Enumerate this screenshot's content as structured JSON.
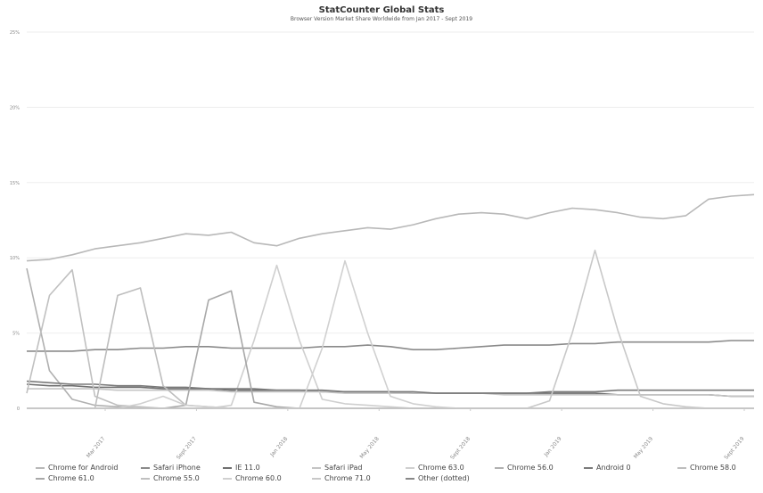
{
  "chart_data": {
    "type": "line",
    "title": "StatCounter Global Stats",
    "subtitle": "Browser Version Market Share Worldwide from Jan 2017 - Sept 2019",
    "x_tick_labels": [
      "Mar 2017",
      "Sept 2017",
      "Jan 2018",
      "May 2018",
      "Sept 2018",
      "Jan 2019",
      "May 2019",
      "Sept 2019"
    ],
    "y_tick_labels": [
      "0",
      "5%",
      "10%",
      "15%",
      "20%",
      "25%"
    ],
    "ylim": [
      0,
      25
    ],
    "grid": true,
    "legend_position": "bottom",
    "x_count": 33,
    "series": [
      {
        "name": "Chrome for Android",
        "color": "#b8b8b8",
        "values": [
          9.8,
          9.9,
          10.2,
          10.6,
          10.8,
          11.0,
          11.3,
          11.6,
          11.5,
          11.7,
          11.0,
          10.8,
          11.3,
          11.6,
          11.8,
          12.0,
          11.9,
          12.2,
          12.6,
          12.9,
          13.0,
          12.9,
          12.6,
          13.0,
          13.3,
          13.2,
          13.0,
          12.7,
          12.6,
          12.8,
          13.9,
          14.1,
          14.2
        ]
      },
      {
        "name": "Safari iPhone",
        "color": "#8a8a8a",
        "values": [
          3.8,
          3.8,
          3.8,
          3.9,
          3.9,
          4.0,
          4.0,
          4.1,
          4.1,
          4.0,
          4.0,
          4.0,
          4.0,
          4.1,
          4.1,
          4.2,
          4.1,
          3.9,
          3.9,
          4.0,
          4.1,
          4.2,
          4.2,
          4.2,
          4.3,
          4.3,
          4.4,
          4.4,
          4.4,
          4.4,
          4.4,
          4.5,
          4.5
        ]
      },
      {
        "name": "IE 11.0",
        "color": "#6f6f6f",
        "values": [
          1.6,
          1.5,
          1.5,
          1.4,
          1.4,
          1.4,
          1.3,
          1.3,
          1.3,
          1.2,
          1.2,
          1.2,
          1.2,
          1.1,
          1.1,
          1.1,
          1.1,
          1.0,
          1.0,
          1.0,
          1.0,
          1.0,
          1.0,
          1.0,
          1.0,
          1.0,
          0.9,
          0.9,
          0.9,
          0.9,
          0.9,
          0.8,
          0.8
        ]
      },
      {
        "name": "Safari iPad",
        "color": "#c4c4c4",
        "values": [
          1.3,
          1.3,
          1.3,
          1.3,
          1.2,
          1.2,
          1.2,
          1.2,
          1.2,
          1.1,
          1.1,
          1.1,
          1.1,
          1.1,
          1.0,
          1.0,
          1.0,
          1.0,
          1.0,
          1.0,
          1.0,
          0.9,
          0.9,
          0.9,
          0.9,
          0.9,
          0.9,
          0.9,
          0.9,
          0.9,
          0.9,
          0.8,
          0.8
        ]
      },
      {
        "name": "Chrome 63.0",
        "color": "#cfcfcf",
        "values": [
          0,
          0,
          0,
          0,
          0,
          0,
          0,
          0,
          0,
          0.2,
          4.5,
          9.5,
          4.5,
          0.6,
          0.3,
          0.2,
          0.1,
          0,
          0,
          0,
          0,
          0,
          0,
          0,
          0,
          0,
          0,
          0,
          0,
          0,
          0,
          0,
          0
        ]
      },
      {
        "name": "Chrome 56.0",
        "color": "#b0b0b0",
        "values": [
          9.3,
          2.5,
          0.6,
          0.2,
          0.1,
          0,
          0,
          0,
          0,
          0,
          0,
          0,
          0,
          0,
          0,
          0,
          0,
          0,
          0,
          0,
          0,
          0,
          0,
          0,
          0,
          0,
          0,
          0,
          0,
          0,
          0,
          0,
          0
        ]
      },
      {
        "name": "Android 0",
        "color": "#7a7a7a",
        "values": [
          1.8,
          1.7,
          1.6,
          1.6,
          1.5,
          1.5,
          1.4,
          1.4,
          1.3,
          1.3,
          1.3,
          1.2,
          1.2,
          1.2,
          1.1,
          1.1,
          1.1,
          1.1,
          1.0,
          1.0,
          1.0,
          1.0,
          1.0,
          1.1,
          1.1,
          1.1,
          1.2,
          1.2,
          1.2,
          1.2,
          1.2,
          1.2,
          1.2
        ]
      },
      {
        "name": "Chrome 58.0",
        "color": "#bdbdbd",
        "values": [
          0,
          0,
          0,
          0,
          7.5,
          8.0,
          1.5,
          0.2,
          0.1,
          0,
          0,
          0,
          0,
          0,
          0,
          0,
          0,
          0,
          0,
          0,
          0,
          0,
          0,
          0,
          0,
          0,
          0,
          0,
          0,
          0,
          0,
          0,
          0
        ]
      },
      {
        "name": "Chrome 61.0",
        "color": "#a8a8a8",
        "values": [
          0,
          0,
          0,
          0,
          0,
          0,
          0,
          0.2,
          7.2,
          7.8,
          0.4,
          0.1,
          0,
          0,
          0,
          0,
          0,
          0,
          0,
          0,
          0,
          0,
          0,
          0,
          0,
          0,
          0,
          0,
          0,
          0,
          0,
          0,
          0
        ]
      },
      {
        "name": "Chrome 55.0",
        "color": "#c0c0c0",
        "values": [
          1.0,
          7.5,
          9.2,
          0.8,
          0.2,
          0.1,
          0,
          0,
          0,
          0,
          0,
          0,
          0,
          0,
          0,
          0,
          0,
          0,
          0,
          0,
          0,
          0,
          0,
          0,
          0,
          0,
          0,
          0,
          0,
          0,
          0,
          0,
          0
        ]
      },
      {
        "name": "Chrome 60.0",
        "color": "#d0d0d0",
        "values": [
          0,
          0,
          0,
          0,
          0,
          0.3,
          0.8,
          0.2,
          0.1,
          0,
          0,
          0,
          0,
          4.0,
          9.8,
          5.0,
          0.8,
          0.3,
          0.1,
          0,
          0,
          0,
          0,
          0,
          0,
          0,
          0,
          0,
          0,
          0,
          0,
          0,
          0
        ]
      },
      {
        "name": "Chrome 71.0",
        "color": "#c8c8c8",
        "values": [
          0,
          0,
          0,
          0,
          0,
          0,
          0,
          0,
          0,
          0,
          0,
          0,
          0,
          0,
          0,
          0,
          0,
          0,
          0,
          0,
          0,
          0,
          0,
          0.5,
          5.0,
          10.5,
          5.2,
          0.8,
          0.3,
          0.1,
          0,
          0,
          0
        ]
      }
    ]
  },
  "legend": [
    {
      "label": "Chrome for Android",
      "color": "#b8b8b8"
    },
    {
      "label": "Safari iPhone",
      "color": "#8a8a8a"
    },
    {
      "label": "IE 11.0",
      "color": "#6f6f6f"
    },
    {
      "label": "Safari iPad",
      "color": "#c4c4c4"
    },
    {
      "label": "Chrome 63.0",
      "color": "#cfcfcf"
    },
    {
      "label": "Chrome 56.0",
      "color": "#b0b0b0"
    },
    {
      "label": "Android 0",
      "color": "#7a7a7a"
    },
    {
      "label": "Chrome 58.0",
      "color": "#bdbdbd"
    },
    {
      "label": "Chrome 61.0",
      "color": "#a8a8a8"
    },
    {
      "label": "Chrome 55.0",
      "color": "#c0c0c0"
    },
    {
      "label": "Chrome 60.0",
      "color": "#d0d0d0"
    },
    {
      "label": "Chrome 71.0",
      "color": "#c8c8c8"
    },
    {
      "label": "Other (dotted)",
      "color": "#888888"
    }
  ]
}
